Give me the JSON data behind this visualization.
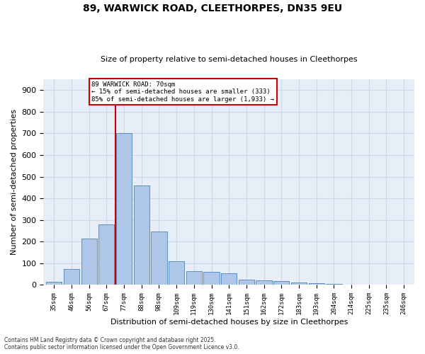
{
  "title1": "89, WARWICK ROAD, CLEETHORPES, DN35 9EU",
  "title2": "Size of property relative to semi-detached houses in Cleethorpes",
  "xlabel": "Distribution of semi-detached houses by size in Cleethorpes",
  "ylabel": "Number of semi-detached properties",
  "categories": [
    "35sqm",
    "46sqm",
    "56sqm",
    "67sqm",
    "77sqm",
    "88sqm",
    "98sqm",
    "109sqm",
    "119sqm",
    "130sqm",
    "141sqm",
    "151sqm",
    "162sqm",
    "172sqm",
    "183sqm",
    "193sqm",
    "204sqm",
    "214sqm",
    "225sqm",
    "235sqm",
    "246sqm"
  ],
  "values": [
    15,
    75,
    215,
    280,
    700,
    460,
    247,
    110,
    65,
    60,
    53,
    25,
    20,
    17,
    10,
    8,
    5,
    3,
    1,
    1,
    0
  ],
  "bar_color": "#aec6e8",
  "bar_edge_color": "#5a8fc0",
  "property_line_x": 3.5,
  "vline_color": "#cc0000",
  "annotation_box_color": "#cc0000",
  "annotation_text_line1": "89 WARWICK ROAD: 70sqm",
  "annotation_text_line2": "← 15% of semi-detached houses are smaller (333)",
  "annotation_text_line3": "85% of semi-detached houses are larger (1,933) →",
  "grid_color": "#d0d8e8",
  "background_color": "#e8eef8",
  "footer_text": "Contains HM Land Registry data © Crown copyright and database right 2025.\nContains public sector information licensed under the Open Government Licence v3.0.",
  "ylim": [
    0,
    950
  ],
  "yticks": [
    0,
    100,
    200,
    300,
    400,
    500,
    600,
    700,
    800,
    900
  ]
}
